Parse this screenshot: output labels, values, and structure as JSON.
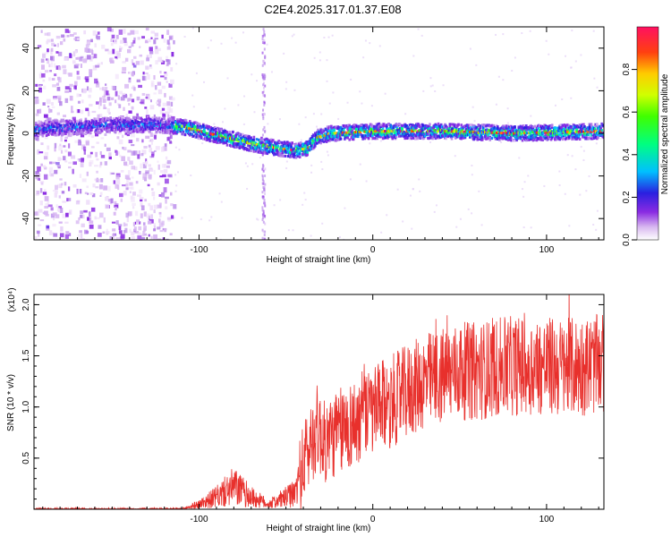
{
  "title": "C2E4.2025.317.01.37.E08",
  "chart_data": [
    {
      "type": "heatmap",
      "xlabel": "Height of straight line (km)",
      "ylabel": "Frequency (Hz)",
      "xlim": [
        -195,
        133
      ],
      "ylim": [
        -50,
        50
      ],
      "xticks": [
        -100,
        0,
        100
      ],
      "yticks": [
        -40,
        -20,
        0,
        20,
        40
      ],
      "colorbar": {
        "label": "Normalized spectral amplitude",
        "range": [
          0,
          1
        ],
        "ticks": [
          0.0,
          0.2,
          0.4,
          0.6,
          0.8
        ],
        "tick_labels": [
          "0.0",
          "0.2",
          "0.4",
          "0.6",
          "0.8"
        ],
        "colormap": "rainbow"
      },
      "ridge": {
        "x": [
          -195,
          -170,
          -150,
          -130,
          -110,
          -95,
          -80,
          -70,
          -62,
          -55,
          -45,
          -38,
          -33,
          -25,
          0,
          40,
          80,
          133
        ],
        "y": [
          2,
          3,
          4,
          4,
          3,
          0,
          -3,
          -5,
          -6,
          -7,
          -8,
          -7,
          -2,
          0,
          1,
          1,
          0,
          1
        ]
      },
      "noise_region_x": [
        -195,
        -115
      ],
      "spike_x": -63
    },
    {
      "type": "line",
      "xlabel": "Height of straight line (km)",
      "ylabel": "SNR (10 * v/v)",
      "y_multiplier": "(x10⁴)",
      "xlim": [
        -195,
        133
      ],
      "ylim": [
        0,
        2.1
      ],
      "xticks": [
        -100,
        0,
        100
      ],
      "yticks": [
        0.5,
        1.0,
        1.5,
        2.0
      ],
      "ytick_labels": [
        "0.5",
        "1.0",
        "1.5",
        "2.0"
      ],
      "color": "#e8302c",
      "envelope": {
        "x": [
          -195,
          -110,
          -100,
          -90,
          -80,
          -70,
          -60,
          -45,
          -38,
          -32,
          -28,
          -20,
          -10,
          0,
          10,
          20,
          30,
          40,
          50,
          60,
          70,
          80,
          90,
          100,
          110,
          120,
          133
        ],
        "y": [
          0.0,
          0.0,
          0.05,
          0.12,
          0.22,
          0.12,
          0.05,
          0.15,
          0.55,
          0.8,
          0.65,
          0.75,
          0.85,
          0.95,
          1.05,
          1.15,
          1.25,
          1.3,
          1.35,
          1.35,
          1.38,
          1.4,
          1.4,
          1.4,
          1.38,
          1.4,
          1.42
        ]
      }
    }
  ]
}
